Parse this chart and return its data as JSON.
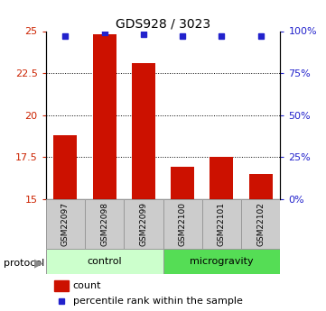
{
  "title": "GDS928 / 3023",
  "samples": [
    "GSM22097",
    "GSM22098",
    "GSM22099",
    "GSM22100",
    "GSM22101",
    "GSM22102"
  ],
  "bar_values": [
    18.8,
    24.8,
    23.1,
    16.9,
    17.5,
    16.5
  ],
  "percentile_values": [
    97,
    99,
    98,
    97,
    97,
    97
  ],
  "bar_color": "#cc1100",
  "dot_color": "#2222cc",
  "ylim_left": [
    15,
    25
  ],
  "ylim_right": [
    0,
    100
  ],
  "yticks_left": [
    15,
    17.5,
    20,
    22.5,
    25
  ],
  "yticks_right": [
    0,
    25,
    50,
    75,
    100
  ],
  "ytick_labels_right": [
    "0%",
    "25%",
    "50%",
    "75%",
    "100%"
  ],
  "grid_ticks": [
    17.5,
    20,
    22.5
  ],
  "left_tick_color": "#cc2200",
  "right_tick_color": "#2222cc",
  "legend_count_label": "count",
  "legend_pct_label": "percentile rank within the sample",
  "protocol_label": "protocol",
  "bar_width": 0.6,
  "ctrl_color": "#ccffcc",
  "micro_color": "#55dd55",
  "sample_box_color": "#cccccc"
}
